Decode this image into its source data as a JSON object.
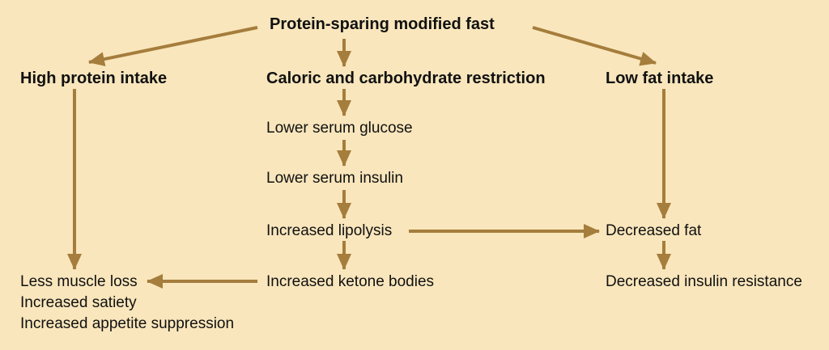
{
  "colors": {
    "background": "#f9e6bc",
    "arrow": "#a57d3c",
    "text": "#111111"
  },
  "nodes": {
    "root": "Protein-sparing modified fast",
    "high_protein": "High protein intake",
    "caloric_restriction": "Caloric and carbohydrate restriction",
    "low_fat": "Low fat intake",
    "lower_glucose": "Lower serum glucose",
    "lower_insulin": "Lower serum insulin",
    "increased_lipolysis": "Increased lipolysis",
    "decreased_fat": "Decreased fat",
    "increased_ketone": "Increased ketone bodies",
    "decreased_insulin_resistance": "Decreased insulin resistance",
    "outcomes": [
      "Less muscle loss",
      "Increased satiety",
      "Increased appetite suppression"
    ]
  },
  "edges": [
    {
      "from": "root",
      "to": "high_protein"
    },
    {
      "from": "root",
      "to": "caloric_restriction"
    },
    {
      "from": "root",
      "to": "low_fat"
    },
    {
      "from": "caloric_restriction",
      "to": "lower_glucose"
    },
    {
      "from": "lower_glucose",
      "to": "lower_insulin"
    },
    {
      "from": "lower_insulin",
      "to": "increased_lipolysis"
    },
    {
      "from": "increased_lipolysis",
      "to": "increased_ketone"
    },
    {
      "from": "increased_lipolysis",
      "to": "decreased_fat"
    },
    {
      "from": "low_fat",
      "to": "decreased_fat"
    },
    {
      "from": "decreased_fat",
      "to": "decreased_insulin_resistance"
    },
    {
      "from": "high_protein",
      "to": "outcomes"
    },
    {
      "from": "increased_ketone",
      "to": "outcomes"
    }
  ]
}
